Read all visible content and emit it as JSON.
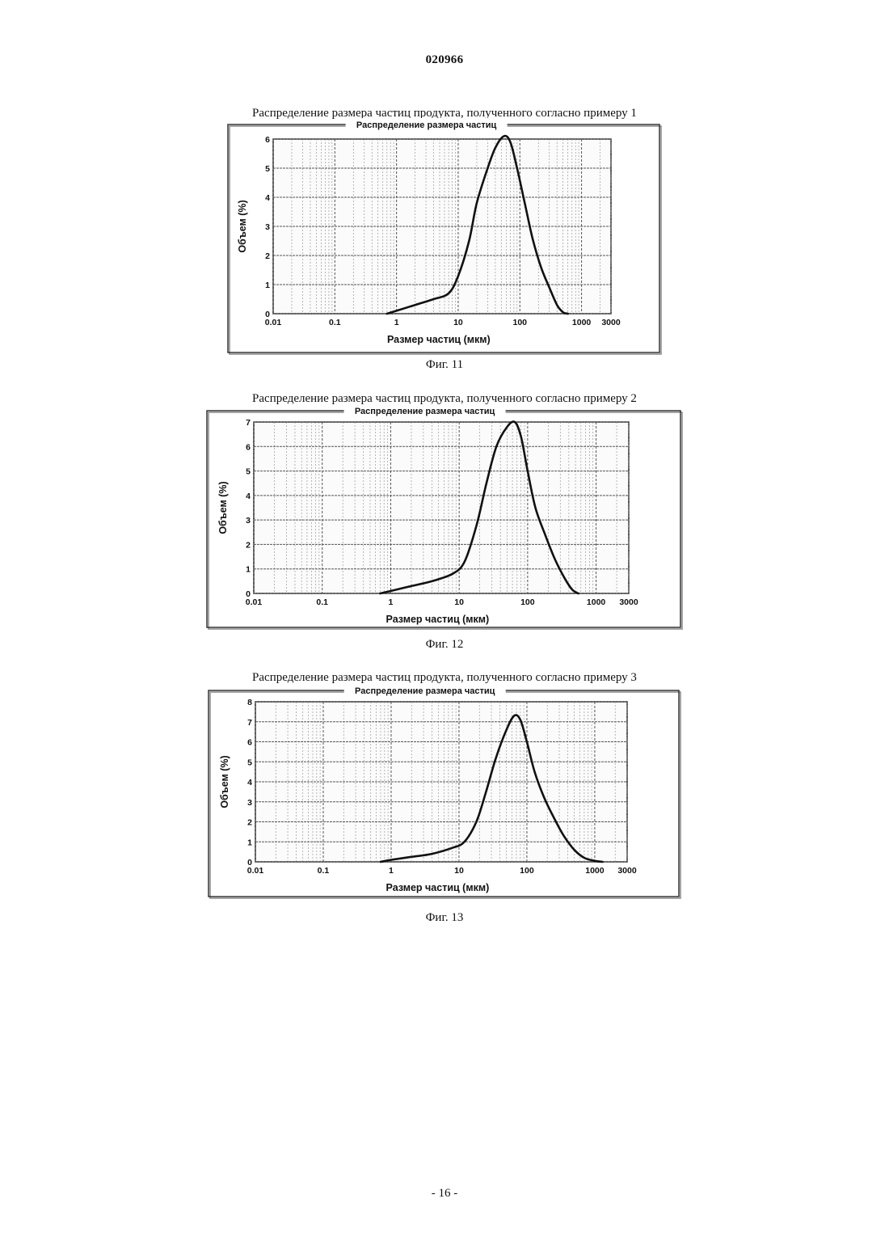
{
  "header": {
    "doc_number": "020966"
  },
  "footer": {
    "page_number": "- 16 -"
  },
  "figures": [
    {
      "caption": "Распределение размера частиц продукта, полученного согласно примеру 1",
      "label": "Фиг. 11"
    },
    {
      "caption": "Распределение размера частиц продукта, полученного согласно примеру 2",
      "label": "Фиг. 12"
    },
    {
      "caption": "Распределение размера частиц продукта, полученного согласно примеру 3",
      "label": "Фиг. 13"
    }
  ],
  "chart_data": [
    {
      "type": "line",
      "title": "Распределение размера частиц",
      "xlabel": "Размер частиц (мкм)",
      "ylabel": "Объем (%)",
      "x_scale": "log",
      "xlim": [
        0.01,
        3000
      ],
      "ylim": [
        0,
        6
      ],
      "x_ticks": [
        "0.01",
        "0.1",
        "1",
        "10",
        "100",
        "1000",
        "3000"
      ],
      "y_ticks": [
        "0",
        "1",
        "2",
        "3",
        "4",
        "5",
        "6"
      ],
      "grid": true,
      "series": [
        {
          "x": [
            0.7,
            1,
            2,
            4,
            7,
            10,
            15,
            20,
            30,
            40,
            55,
            70,
            90,
            120,
            160,
            220,
            300,
            400,
            500,
            600
          ],
          "y": [
            0,
            0.1,
            0.3,
            0.5,
            0.7,
            1.3,
            2.5,
            3.8,
            5.0,
            5.7,
            6.1,
            5.9,
            5.0,
            3.8,
            2.6,
            1.6,
            0.9,
            0.3,
            0.05,
            0
          ]
        }
      ]
    },
    {
      "type": "line",
      "title": "Распределение размера частиц",
      "xlabel": "Размер частиц (мкм)",
      "ylabel": "Объем (%)",
      "x_scale": "log",
      "xlim": [
        0.01,
        3000
      ],
      "ylim": [
        0,
        7
      ],
      "x_ticks": [
        "0.01",
        "0.1",
        "1",
        "10",
        "100",
        "1000",
        "3000"
      ],
      "y_ticks": [
        "0",
        "1",
        "2",
        "3",
        "4",
        "5",
        "6",
        "7"
      ],
      "grid": true,
      "series": [
        {
          "x": [
            0.7,
            1,
            2,
            4,
            8,
            12,
            18,
            25,
            35,
            50,
            65,
            80,
            100,
            130,
            180,
            250,
            350,
            450,
            550
          ],
          "y": [
            0,
            0.1,
            0.3,
            0.5,
            0.8,
            1.3,
            2.8,
            4.5,
            6.0,
            6.8,
            7.0,
            6.4,
            5.0,
            3.5,
            2.4,
            1.4,
            0.6,
            0.15,
            0
          ]
        }
      ]
    },
    {
      "type": "line",
      "title": "Распределение размера частиц",
      "xlabel": "Размер частиц (мкм)",
      "ylabel": "Объем (%)",
      "x_scale": "log",
      "xlim": [
        0.01,
        3000
      ],
      "ylim": [
        0,
        8
      ],
      "x_ticks": [
        "0.01",
        "0.1",
        "1",
        "10",
        "100",
        "1000",
        "3000"
      ],
      "y_ticks": [
        "0",
        "1",
        "2",
        "3",
        "4",
        "5",
        "6",
        "7",
        "8"
      ],
      "grid": true,
      "series": [
        {
          "x": [
            0.7,
            1,
            2,
            4,
            8,
            12,
            18,
            25,
            35,
            50,
            65,
            80,
            100,
            130,
            180,
            250,
            350,
            500,
            700,
            1000,
            1300
          ],
          "y": [
            0,
            0.1,
            0.25,
            0.4,
            0.7,
            1.0,
            2.0,
            3.5,
            5.2,
            6.6,
            7.3,
            7.1,
            6.0,
            4.5,
            3.2,
            2.2,
            1.3,
            0.6,
            0.2,
            0.05,
            0
          ]
        }
      ]
    }
  ]
}
